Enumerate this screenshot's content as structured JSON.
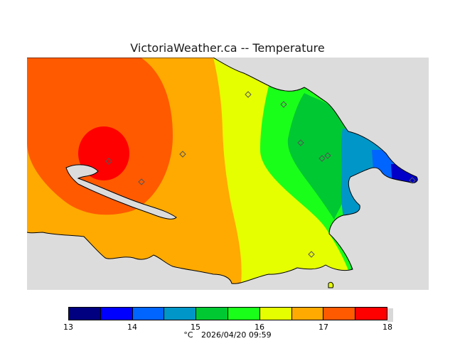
{
  "title": "VictoriaWeather.ca -- Temperature",
  "legend": {
    "ticks": [
      "13",
      "14",
      "15",
      "16",
      "17",
      "18"
    ],
    "colors": [
      "#000080",
      "#0000ff",
      "#0064ff",
      "#0096c8",
      "#00c832",
      "#1aff1a",
      "#e6ff00",
      "#ffaa00",
      "#ff5a00",
      "#ff0000"
    ]
  },
  "footer": {
    "unit": "°C",
    "timestamp": "2026/04/20 09:59"
  },
  "map": {
    "icons": [
      "station-marker-icon"
    ],
    "band_colors": {
      "red": "#ff0000",
      "red_orange": "#ff5a00",
      "orange": "#ffaa00",
      "yellow": "#e6ff00",
      "light_green": "#1aff1a",
      "green": "#00c832",
      "teal": "#0096c8",
      "blue": "#0064ff",
      "dark_blue": "#0000c8",
      "water": "#dcdcdc"
    }
  }
}
